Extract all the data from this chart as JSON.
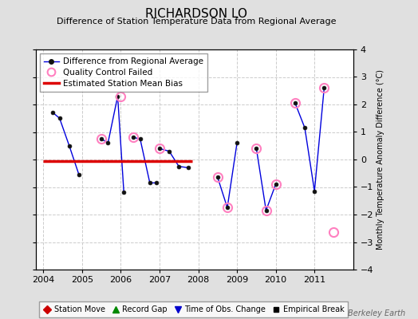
{
  "title": "RICHARDSON LO",
  "subtitle": "Difference of Station Temperature Data from Regional Average",
  "ylabel_right": "Monthly Temperature Anomaly Difference (°C)",
  "xlim": [
    2003.8,
    2012.0
  ],
  "ylim": [
    -4,
    4
  ],
  "yticks": [
    -4,
    -3,
    -2,
    -1,
    0,
    1,
    2,
    3,
    4
  ],
  "xticks": [
    2004,
    2005,
    2006,
    2007,
    2008,
    2009,
    2010,
    2011
  ],
  "bias_line_x": [
    2004.0,
    2007.85
  ],
  "bias_line_y": [
    -0.05,
    -0.05
  ],
  "background_color": "#e0e0e0",
  "plot_bg_color": "#ffffff",
  "line_color": "#0000dd",
  "bias_color": "#dd0000",
  "qc_color": "#ff80c0",
  "segments": [
    {
      "x": [
        2004.25,
        2004.42,
        2004.67,
        2004.92
      ],
      "y": [
        1.7,
        1.5,
        0.5,
        -0.55
      ]
    },
    {
      "x": [
        2005.5,
        2005.67,
        2005.92,
        2006.08
      ],
      "y": [
        0.75,
        0.6,
        2.3,
        -1.2
      ]
    },
    {
      "x": [
        2006.33,
        2006.5,
        2006.75,
        2006.92
      ],
      "y": [
        0.8,
        0.75,
        -0.85,
        -0.85
      ]
    },
    {
      "x": [
        2007.0,
        2007.25,
        2007.5,
        2007.75
      ],
      "y": [
        0.4,
        0.3,
        -0.25,
        -0.3
      ]
    },
    {
      "x": [
        2008.5,
        2008.75,
        2009.0
      ],
      "y": [
        -0.65,
        -1.75,
        0.6
      ]
    },
    {
      "x": [
        2009.5,
        2009.75,
        2010.0
      ],
      "y": [
        0.4,
        -1.85,
        -0.9
      ]
    },
    {
      "x": [
        2010.5,
        2010.75,
        2011.0,
        2011.25
      ],
      "y": [
        2.05,
        1.15,
        -1.15,
        2.6
      ]
    }
  ],
  "qc_points": [
    [
      2005.5,
      0.75
    ],
    [
      2006.0,
      2.3
    ],
    [
      2006.33,
      0.8
    ],
    [
      2007.0,
      0.4
    ],
    [
      2008.5,
      -0.65
    ],
    [
      2008.75,
      -1.75
    ],
    [
      2009.5,
      0.4
    ],
    [
      2009.75,
      -1.85
    ],
    [
      2010.0,
      -0.9
    ],
    [
      2010.5,
      2.05
    ],
    [
      2011.25,
      2.6
    ],
    [
      2011.5,
      -2.65
    ]
  ],
  "watermark": "Berkeley Earth",
  "legend1_items": [
    "Difference from Regional Average",
    "Quality Control Failed",
    "Estimated Station Mean Bias"
  ],
  "legend2_items": [
    "Station Move",
    "Record Gap",
    "Time of Obs. Change",
    "Empirical Break"
  ]
}
